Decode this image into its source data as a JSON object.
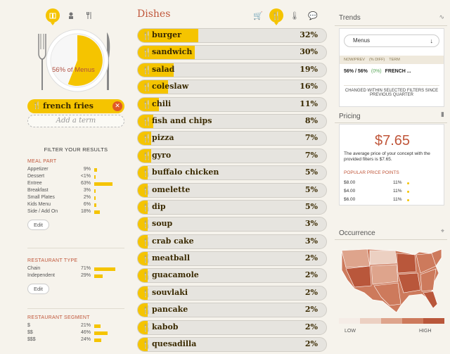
{
  "sidebar": {
    "plate_label": "56% of Menus",
    "chip_term": "french fries",
    "add_term_placeholder": "Add a term",
    "filter_title": "FILTER YOUR RESULTS",
    "edit_label": "Edit",
    "groups": [
      {
        "title": "MEAL PART",
        "rows": [
          {
            "label": "Appetizer",
            "pct": "9%",
            "value": 9
          },
          {
            "label": "Dessert",
            "pct": "<1%",
            "value": 0.5
          },
          {
            "label": "Entree",
            "pct": "63%",
            "value": 63
          },
          {
            "label": "Breakfast",
            "pct": "3%",
            "value": 3
          },
          {
            "label": "Small Plates",
            "pct": "2%",
            "value": 2
          },
          {
            "label": "Kids Menu",
            "pct": "6%",
            "value": 6
          },
          {
            "label": "Side / Add On",
            "pct": "18%",
            "value": 18
          }
        ]
      },
      {
        "title": "RESTAURANT TYPE",
        "rows": [
          {
            "label": "Chain",
            "pct": "71%",
            "value": 71
          },
          {
            "label": "Independent",
            "pct": "29%",
            "value": 29
          }
        ]
      },
      {
        "title": "RESTAURANT SEGMENT",
        "rows": [
          {
            "label": "$",
            "pct": "21%",
            "value": 21
          },
          {
            "label": "$$",
            "pct": "46%",
            "value": 46
          },
          {
            "label": "$$$",
            "pct": "24%",
            "value": 24
          }
        ]
      }
    ]
  },
  "main": {
    "title": "Dishes",
    "dishes": [
      {
        "name": "burger",
        "pct": "32%",
        "value": 32
      },
      {
        "name": "sandwich",
        "pct": "30%",
        "value": 30
      },
      {
        "name": "salad",
        "pct": "19%",
        "value": 19
      },
      {
        "name": "coleslaw",
        "pct": "16%",
        "value": 16
      },
      {
        "name": "chili",
        "pct": "11%",
        "value": 11
      },
      {
        "name": "fish and chips",
        "pct": "8%",
        "value": 8
      },
      {
        "name": "pizza",
        "pct": "7%",
        "value": 7
      },
      {
        "name": "gyro",
        "pct": "7%",
        "value": 7
      },
      {
        "name": "buffalo chicken",
        "pct": "5%",
        "value": 5
      },
      {
        "name": "omelette",
        "pct": "5%",
        "value": 5
      },
      {
        "name": "dip",
        "pct": "5%",
        "value": 5
      },
      {
        "name": "soup",
        "pct": "3%",
        "value": 3
      },
      {
        "name": "crab cake",
        "pct": "3%",
        "value": 3
      },
      {
        "name": "meatball",
        "pct": "2%",
        "value": 2
      },
      {
        "name": "guacamole",
        "pct": "2%",
        "value": 2
      },
      {
        "name": "souvlaki",
        "pct": "2%",
        "value": 2
      },
      {
        "name": "pancake",
        "pct": "2%",
        "value": 2
      },
      {
        "name": "kabob",
        "pct": "2%",
        "value": 2
      },
      {
        "name": "quesadilla",
        "pct": "2%",
        "value": 2
      }
    ]
  },
  "trends": {
    "title": "Trends",
    "select_value": "Menus",
    "headers": [
      "NOW/PREV",
      "(% DIFF)",
      "TERM"
    ],
    "row": {
      "nowprev": "56% / 56%",
      "diff": "(0%)",
      "term": "FRENCH ..."
    },
    "note": "CHANGED WITHIN SELECTED FILTERS SINCE PREVIOUS QUARTER"
  },
  "pricing": {
    "title": "Pricing",
    "price": "$7.65",
    "description": "The average price of your concept with the provided filters is $7.65.",
    "points_title": "POPULAR PRICE POINTS",
    "points": [
      {
        "price": "$8.00",
        "pct": "11%"
      },
      {
        "price": "$4.00",
        "pct": "11%"
      },
      {
        "price": "$6.00",
        "pct": "11%"
      }
    ]
  },
  "occurrence": {
    "title": "Occurrence",
    "low": "LOW",
    "high": "HIGH",
    "colors": [
      "#f5ece6",
      "#ecd0c2",
      "#dea48c",
      "#cd7a5c",
      "#b9573b"
    ]
  }
}
